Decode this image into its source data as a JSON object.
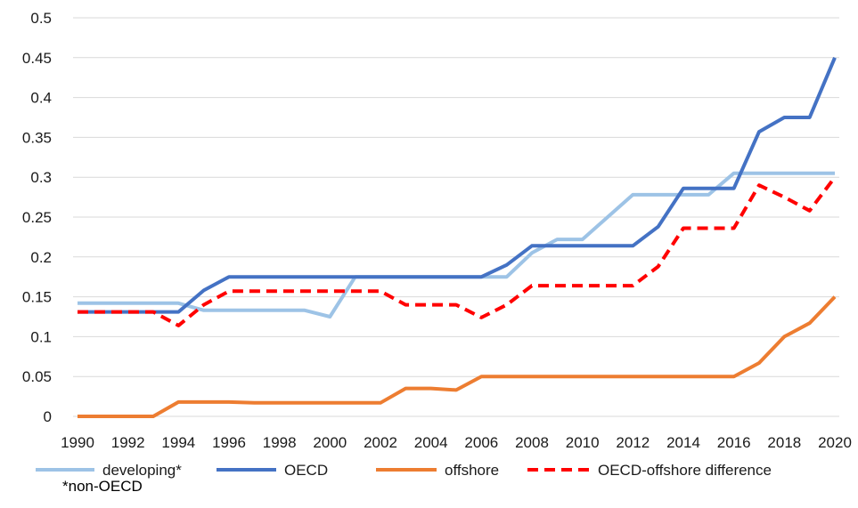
{
  "chart_data": {
    "type": "line",
    "x": [
      1990,
      1991,
      1992,
      1993,
      1994,
      1995,
      1996,
      1997,
      1998,
      1999,
      2000,
      2001,
      2002,
      2003,
      2004,
      2005,
      2006,
      2007,
      2008,
      2009,
      2010,
      2011,
      2012,
      2013,
      2014,
      2015,
      2016,
      2017,
      2018,
      2019,
      2020
    ],
    "x_tick_labels": [
      "1990",
      "1992",
      "1994",
      "1996",
      "1998",
      "2000",
      "2002",
      "2004",
      "2006",
      "2008",
      "2010",
      "2012",
      "2014",
      "2016",
      "2018",
      "2020"
    ],
    "y_tick_labels": [
      "0",
      "0.05",
      "0.1",
      "0.15",
      "0.2",
      "0.25",
      "0.3",
      "0.35",
      "0.4",
      "0.45",
      "0.5"
    ],
    "ylim": [
      0,
      0.5
    ],
    "grid": true,
    "legend_position": "bottom",
    "series": [
      {
        "name": "developing*",
        "color": "#9dc3e6",
        "style": "solid",
        "values": [
          0.142,
          0.142,
          0.142,
          0.142,
          0.142,
          0.133,
          0.133,
          0.133,
          0.133,
          0.133,
          0.125,
          0.175,
          0.175,
          0.175,
          0.175,
          0.175,
          0.175,
          0.175,
          0.205,
          0.222,
          0.222,
          0.25,
          0.278,
          0.278,
          0.278,
          0.278,
          0.305,
          0.305,
          0.305,
          0.305,
          0.305
        ]
      },
      {
        "name": "OECD",
        "color": "#4472c4",
        "style": "solid",
        "values": [
          0.131,
          0.131,
          0.131,
          0.131,
          0.131,
          0.158,
          0.175,
          0.175,
          0.175,
          0.175,
          0.175,
          0.175,
          0.175,
          0.175,
          0.175,
          0.175,
          0.175,
          0.19,
          0.214,
          0.214,
          0.214,
          0.214,
          0.214,
          0.238,
          0.286,
          0.286,
          0.286,
          0.357,
          0.375,
          0.375,
          0.45
        ]
      },
      {
        "name": "offshore",
        "color": "#ed7d31",
        "style": "solid",
        "values": [
          0,
          0,
          0,
          0,
          0.018,
          0.018,
          0.018,
          0.017,
          0.017,
          0.017,
          0.017,
          0.017,
          0.017,
          0.035,
          0.035,
          0.033,
          0.05,
          0.05,
          0.05,
          0.05,
          0.05,
          0.05,
          0.05,
          0.05,
          0.05,
          0.05,
          0.05,
          0.067,
          0.1,
          0.117,
          0.15
        ]
      },
      {
        "name": "OECD-offshore difference",
        "color": "#ff0000",
        "style": "dashed",
        "values": [
          0.131,
          0.131,
          0.131,
          0.131,
          0.114,
          0.14,
          0.157,
          0.157,
          0.157,
          0.157,
          0.157,
          0.157,
          0.157,
          0.14,
          0.14,
          0.14,
          0.124,
          0.14,
          0.164,
          0.164,
          0.164,
          0.164,
          0.164,
          0.188,
          0.236,
          0.236,
          0.236,
          0.29,
          0.275,
          0.258,
          0.3
        ]
      }
    ],
    "note": "*non-OECD"
  }
}
